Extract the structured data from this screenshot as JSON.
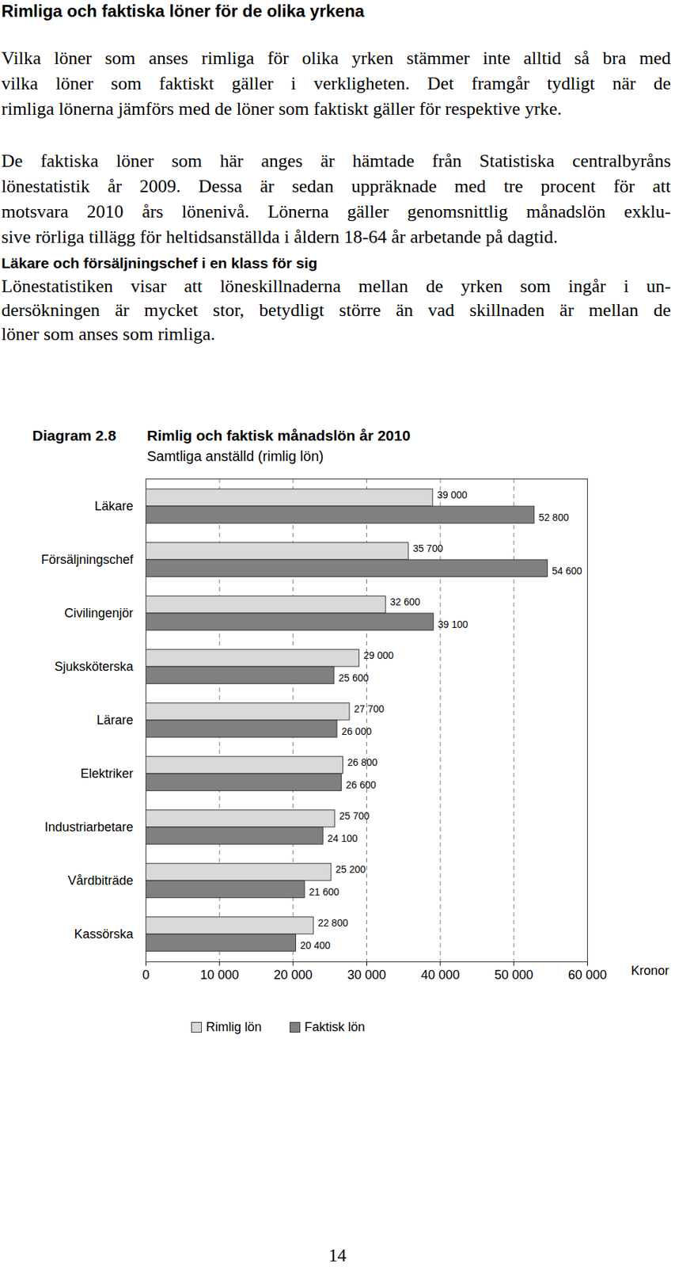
{
  "heading": "Rimliga och faktiska löner för de olika yrkena",
  "paragraphs": [
    [
      "Vilka löner som anses rimliga för olika yrken stämmer inte alltid så bra med",
      "vilka löner som faktiskt gäller i verkligheten. Det framgår tydligt när de",
      "rimliga lönerna jämförs med de löner som faktiskt gäller för respektive yrke."
    ],
    [
      "De faktiska löner som här anges är hämtade från Statistiska centralbyråns",
      "lönestatistik år 2009. Dessa är sedan uppräknade med tre procent för att",
      "motsvara 2010 års lönenivå. Lönerna gäller genomsnittlig månadslön exklu-",
      "sive rörliga tillägg för heltidsanställda i åldern 18-64 år arbetande på dagtid."
    ]
  ],
  "subheading": "Läkare och försäljningschef i en klass för sig",
  "subheading_paragraph": [
    "Lönestatistiken visar att löneskillnaderna mellan de yrken som ingår i un-",
    "dersökningen är mycket stor, betydligt större än vad skillnaden är mellan de",
    "löner som anses som rimliga."
  ],
  "chart_data": {
    "type": "bar",
    "figure_number": "Diagram 2.8",
    "title": "Rimlig och faktisk månadslön år 2010",
    "subtitle": "Samtliga anställd (rimlig lön)",
    "orientation": "horizontal",
    "categories": [
      "Läkare",
      "Försäljningschef",
      "Civilingenjör",
      "Sjuksköterska",
      "Lärare",
      "Elektriker",
      "Industriarbetare",
      "Vårdbiträde",
      "Kassörska"
    ],
    "series": [
      {
        "name": "Rimlig lön",
        "color": "#d9d9d9",
        "values": [
          39000,
          35700,
          32600,
          29000,
          27700,
          26800,
          25700,
          25200,
          22800
        ],
        "value_labels": [
          "39 000",
          "35 700",
          "32 600",
          "29 000",
          "27 700",
          "26 800",
          "25 700",
          "25 200",
          "22 800"
        ]
      },
      {
        "name": "Faktisk lön",
        "color": "#808080",
        "values": [
          52800,
          54600,
          39100,
          25600,
          26000,
          26600,
          24100,
          21600,
          20400
        ],
        "value_labels": [
          "52 800",
          "54 600",
          "39 100",
          "25 600",
          "26 000",
          "26 600",
          "24 100",
          "21 600",
          "20 400"
        ]
      }
    ],
    "x_label": "Kronor",
    "xlim": [
      0,
      60000
    ],
    "xticks": [
      0,
      {
        "value": 10000,
        "label": "10 000"
      },
      {
        "value": 20000,
        "label": "20 000"
      },
      {
        "value": 30000,
        "label": "30 000"
      },
      {
        "value": 40000,
        "label": "40 000"
      },
      {
        "value": 50000,
        "label": "50 000"
      },
      {
        "value": 60000,
        "label": "60 000"
      }
    ],
    "grid": true,
    "data_labels": true,
    "legend": "bottom"
  },
  "page_number": "14"
}
